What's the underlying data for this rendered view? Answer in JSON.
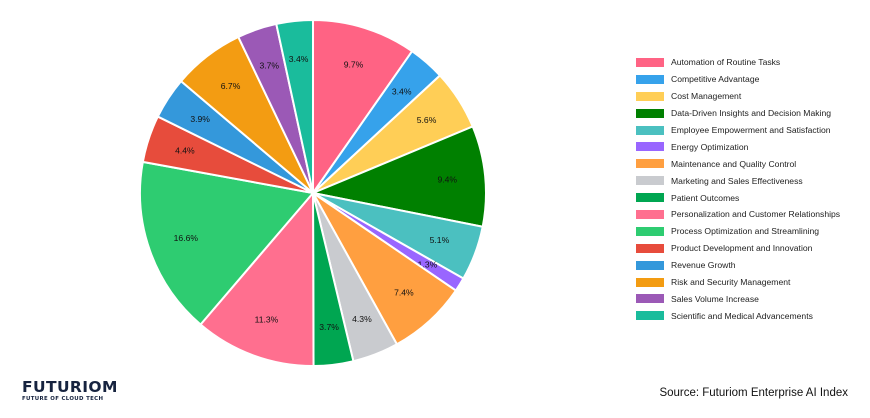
{
  "chart_data": {
    "type": "pie",
    "title": "",
    "legend_position": "right",
    "slices": [
      {
        "name": "Automation of Routine Tasks",
        "value": 9.7,
        "label": "9.7%",
        "color": "#ff6384"
      },
      {
        "name": "Competitive Advantage",
        "value": 3.4,
        "label": "3.4%",
        "color": "#36a2eb"
      },
      {
        "name": "Cost Management",
        "value": 5.6,
        "label": "5.6%",
        "color": "#ffce56"
      },
      {
        "name": "Data-Driven Insights and Decision Making",
        "value": 9.4,
        "label": "9.4%",
        "color": "#008000"
      },
      {
        "name": "Employee Empowerment and Satisfaction",
        "value": 5.1,
        "label": "5.1%",
        "color": "#4bc0c0"
      },
      {
        "name": "Energy Optimization",
        "value": 1.3,
        "label": "1.3%",
        "color": "#9966ff"
      },
      {
        "name": "Maintenance and Quality Control",
        "value": 7.4,
        "label": "7.4%",
        "color": "#ff9f40"
      },
      {
        "name": "Marketing and Sales Effectiveness",
        "value": 4.3,
        "label": "4.3%",
        "color": "#c9cbcf"
      },
      {
        "name": "Patient Outcomes",
        "value": 3.7,
        "label": "3.7%",
        "color": "#00a651"
      },
      {
        "name": "Personalization and Customer Relationships",
        "value": 11.3,
        "label": "11.3%",
        "color": "#ff6f8f"
      },
      {
        "name": "Process Optimization and Streamlining",
        "value": 16.6,
        "label": "16.6%",
        "color": "#2ecc71"
      },
      {
        "name": "Product Development and Innovation",
        "value": 4.4,
        "label": "4.4%",
        "color": "#e74c3c"
      },
      {
        "name": "Revenue Growth",
        "value": 3.9,
        "label": "3.9%",
        "color": "#3498db"
      },
      {
        "name": "Risk and Security Management",
        "value": 6.7,
        "label": "6.7%",
        "color": "#f39c12"
      },
      {
        "name": "Sales Volume Increase",
        "value": 3.7,
        "label": "3.7%",
        "color": "#9b59b6"
      },
      {
        "name": "Scientific and Medical Advancements",
        "value": 3.4,
        "label": "3.4%",
        "color": "#1abc9c"
      }
    ]
  },
  "branding": {
    "logo_name": "FUTURIOM",
    "logo_tagline": "FUTURE OF CLOUD TECH"
  },
  "source": "Source: Futuriom Enterprise AI Index"
}
